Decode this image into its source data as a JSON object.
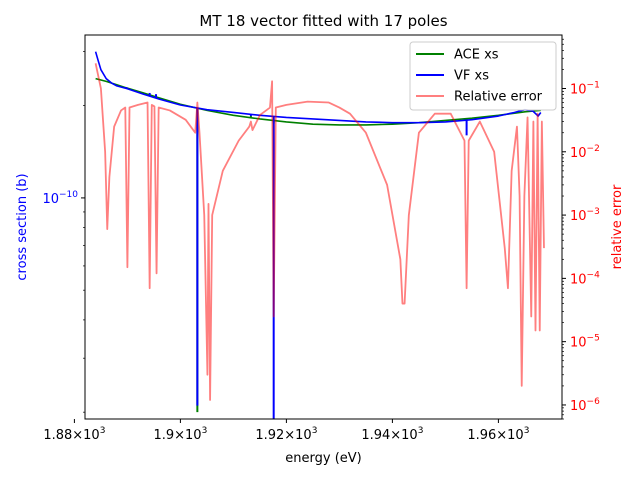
{
  "chart_data": {
    "type": "line",
    "title": "MT 18 vector fitted with 17 poles",
    "xlabel": "energy (eV)",
    "ylabel_left": "cross section (b)",
    "ylabel_right": "relative error",
    "xlim": [
      1882,
      1972
    ],
    "x_ticks": [
      {
        "value": 1880,
        "label": "1.88×10",
        "exp": "3"
      },
      {
        "value": 1900,
        "label": "1.9×10",
        "exp": "3"
      },
      {
        "value": 1920,
        "label": "1.92×10",
        "exp": "3"
      },
      {
        "value": 1940,
        "label": "1.94×10",
        "exp": "3"
      },
      {
        "value": 1960,
        "label": "1.96×10",
        "exp": "3"
      }
    ],
    "y_left": {
      "scale": "log",
      "lim": [
        1.9e-11,
        3.4e-10
      ],
      "major_ticks": [
        {
          "value": 1e-10,
          "label": "10",
          "exp": "−10"
        }
      ],
      "color": "#0000ff"
    },
    "y_right": {
      "scale": "log",
      "lim": [
        6e-07,
        0.7
      ],
      "major_ticks": [
        {
          "value": 1e-06,
          "label": "10",
          "exp": "−6"
        },
        {
          "value": 1e-05,
          "label": "10",
          "exp": "−5"
        },
        {
          "value": 0.0001,
          "label": "10",
          "exp": "−4"
        },
        {
          "value": 0.001,
          "label": "10",
          "exp": "−3"
        },
        {
          "value": 0.01,
          "label": "10",
          "exp": "−2"
        },
        {
          "value": 0.1,
          "label": "10",
          "exp": "−1"
        }
      ],
      "color": "#ff0000"
    },
    "legend_position": "top-right",
    "grid": false,
    "series": [
      {
        "name": "ACE xs",
        "axis": "left",
        "color": "#008000",
        "x": [
          1884,
          1886,
          1888,
          1890,
          1893,
          1896,
          1900,
          1905,
          1910,
          1915,
          1920,
          1925,
          1930,
          1935,
          1940,
          1945,
          1950,
          1955,
          1960,
          1965,
          1968
        ],
        "y": [
          2.45e-10,
          2.4e-10,
          2.34e-10,
          2.28e-10,
          2.2e-10,
          2.12e-10,
          2.02e-10,
          1.93e-10,
          1.86e-10,
          1.81e-10,
          1.77e-10,
          1.74e-10,
          1.73e-10,
          1.73e-10,
          1.74e-10,
          1.76e-10,
          1.79e-10,
          1.82e-10,
          1.86e-10,
          1.91e-10,
          1.93e-10
        ],
        "spikes": [
          {
            "x": 1903.2,
            "y": 2e-11
          },
          {
            "x": 1917.6,
            "y": 1.75e-10
          },
          {
            "x": 1913.3,
            "y": 1.85e-10
          },
          {
            "x": 1954,
            "y": 1.8e-10
          }
        ]
      },
      {
        "name": "VF xs",
        "axis": "left",
        "color": "#0000ff",
        "x": [
          1884,
          1884.5,
          1885,
          1886,
          1887,
          1888,
          1890,
          1893,
          1896,
          1900,
          1905,
          1910,
          1915,
          1920,
          1925,
          1930,
          1935,
          1940,
          1945,
          1950,
          1955,
          1960,
          1963,
          1965,
          1966.5,
          1967.5,
          1968
        ],
        "y": [
          3e-10,
          2.8e-10,
          2.62e-10,
          2.45e-10,
          2.37e-10,
          2.32e-10,
          2.27e-10,
          2.18e-10,
          2.1e-10,
          2.01e-10,
          1.94e-10,
          1.9e-10,
          1.86e-10,
          1.83e-10,
          1.81e-10,
          1.79e-10,
          1.77e-10,
          1.76e-10,
          1.76e-10,
          1.77e-10,
          1.8e-10,
          1.85e-10,
          1.9e-10,
          1.94e-10,
          1.92e-10,
          1.85e-10,
          1.9e-10
        ],
        "spikes": [
          {
            "x": 1889.8,
            "y": 2.3e-10
          },
          {
            "x": 1894.2,
            "y": 2.2e-10
          },
          {
            "x": 1895.4,
            "y": 2.18e-10
          },
          {
            "x": 1903.2,
            "y": 2.1e-11
          },
          {
            "x": 1913.3,
            "y": 1.85e-10
          },
          {
            "x": 1917.6,
            "y": 1.7e-11
          },
          {
            "x": 1954,
            "y": 1.6e-10
          }
        ]
      },
      {
        "name": "Relative error",
        "axis": "right",
        "color": "#ff0000",
        "opacity": 0.5,
        "x": [
          1884,
          1885,
          1885.8,
          1886.2,
          1886.6,
          1887.5,
          1888.8,
          1889.6,
          1890,
          1890.4,
          1892,
          1893.8,
          1894.2,
          1894.6,
          1895.1,
          1895.5,
          1895.9,
          1898,
          1901,
          1902.8,
          1903.2,
          1903.6,
          1904.5,
          1905.1,
          1905.3,
          1905.6,
          1906,
          1908,
          1911,
          1913,
          1913.3,
          1913.6,
          1915,
          1916.9,
          1917.3,
          1917.6,
          1918,
          1920,
          1924,
          1928,
          1930,
          1932,
          1935,
          1939,
          1941.5,
          1941.9,
          1942.3,
          1942.7,
          1943.1,
          1945,
          1948,
          1951,
          1953.6,
          1954,
          1954.4,
          1956.5,
          1959.2,
          1961.2,
          1961.8,
          1962.5,
          1963.5,
          1964,
          1964.4,
          1964.9,
          1965.5,
          1966.2,
          1966.6,
          1967,
          1967.4,
          1967.8,
          1968.2,
          1968.6
        ],
        "y": [
          0.25,
          0.1,
          0.01,
          0.0006,
          0.004,
          0.025,
          0.045,
          0.05,
          0.00015,
          0.05,
          0.055,
          0.06,
          7e-05,
          0.055,
          0.052,
          0.00012,
          0.05,
          0.045,
          0.032,
          0.02,
          0.06,
          0.02,
          0.001,
          3e-06,
          0.0015,
          1.2e-06,
          0.001,
          0.005,
          0.015,
          0.025,
          0.03,
          0.022,
          0.038,
          0.05,
          0.13,
          2.5e-05,
          0.05,
          0.055,
          0.062,
          0.06,
          0.05,
          0.04,
          0.02,
          0.003,
          0.0002,
          4e-05,
          4e-05,
          0.0002,
          0.001,
          0.02,
          0.04,
          0.04,
          0.015,
          7e-05,
          0.015,
          0.03,
          0.01,
          0.0003,
          7e-05,
          0.005,
          0.025,
          0.002,
          2e-06,
          0.002,
          0.035,
          2.5e-05,
          0.03,
          1.5e-05,
          0.04,
          1.5e-05,
          0.03,
          0.0003
        ]
      }
    ]
  }
}
